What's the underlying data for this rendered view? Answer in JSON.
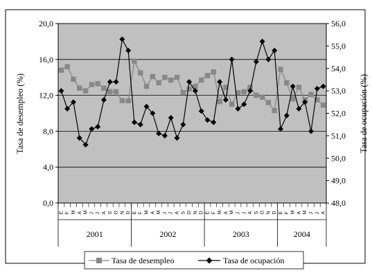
{
  "chart_data": {
    "type": "line",
    "title": "",
    "ylabel": "Tasa de desempleo (%)",
    "y2label": "Tasa de ocupación (%)",
    "ylim": [
      0,
      20
    ],
    "y2lim": [
      48,
      56
    ],
    "yticks": [
      "0,0",
      "4,0",
      "8,0",
      "12,0",
      "16,0",
      "20,0"
    ],
    "y2ticks": [
      "48,0",
      "49,0",
      "50,0",
      "51,0",
      "52,0",
      "53,0",
      "54,0",
      "55,0",
      "56,0"
    ],
    "years": [
      {
        "label": "2001",
        "months": 12
      },
      {
        "label": "2002",
        "months": 12
      },
      {
        "label": "2003",
        "months": 12
      },
      {
        "label": "2004",
        "months": 8
      }
    ],
    "month_labels": [
      "E",
      "F",
      "M",
      "A",
      "M",
      "J",
      "J",
      "A",
      "S",
      "O",
      "N",
      "D"
    ],
    "grid": true,
    "legend_position": "bottom",
    "series": [
      {
        "name": "Tasa de desempleo",
        "axis": "left",
        "color": "#888888",
        "marker": "square",
        "values": [
          14.8,
          15.2,
          13.8,
          12.8,
          12.5,
          13.2,
          13.3,
          12.8,
          12.4,
          12.4,
          11.4,
          11.4,
          15.8,
          14.5,
          13.0,
          14.1,
          13.4,
          14.0,
          13.7,
          14.0,
          12.3,
          12.7,
          13.0,
          13.7,
          14.2,
          14.6,
          11.3,
          12.9,
          11.0,
          12.3,
          12.4,
          12.9,
          12.0,
          11.8,
          11.2,
          10.3,
          14.9,
          13.4,
          11.6,
          12.9,
          11.5,
          12.1,
          11.5,
          10.9
        ]
      },
      {
        "name": "Tasa de ocupación",
        "axis": "right",
        "color": "#000000",
        "marker": "diamond",
        "values": [
          53.0,
          52.2,
          52.5,
          50.9,
          50.6,
          51.3,
          51.4,
          52.6,
          53.4,
          53.4,
          55.3,
          54.8,
          51.6,
          51.5,
          52.3,
          52.0,
          51.1,
          51.0,
          51.8,
          50.9,
          51.5,
          53.4,
          53.0,
          52.1,
          51.7,
          51.6,
          53.4,
          52.6,
          54.4,
          52.2,
          52.4,
          53.0,
          54.3,
          55.2,
          54.4,
          54.8,
          51.3,
          51.9,
          53.2,
          52.2,
          52.5,
          51.2,
          53.1,
          53.2
        ]
      }
    ]
  }
}
